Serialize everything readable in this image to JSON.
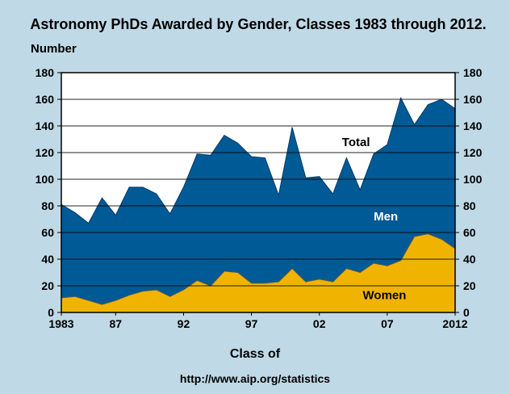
{
  "title": "Astronomy PhDs Awarded by Gender, Classes 1983 through 2012.",
  "ylabel": "Number",
  "xlabel": "Class of",
  "source": "http://www.aip.org/statistics",
  "colors": {
    "background": "#bfd9e6",
    "men": "#005a96",
    "women": "#f0b400",
    "plot_bg": "#ffffff"
  },
  "chart_data": {
    "type": "area",
    "title": "Astronomy PhDs Awarded by Gender, Classes 1983 through 2012.",
    "xlabel": "Class of",
    "ylabel": "Number",
    "x": [
      1983,
      1984,
      1985,
      1986,
      1987,
      1988,
      1989,
      1990,
      1991,
      1992,
      1993,
      1994,
      1995,
      1996,
      1997,
      1998,
      1999,
      2000,
      2001,
      2002,
      2003,
      2004,
      2005,
      2006,
      2007,
      2008,
      2009,
      2010,
      2011,
      2012
    ],
    "ylim": [
      0,
      180
    ],
    "xlim": [
      1983,
      2012
    ],
    "yticks": [
      0,
      20,
      40,
      60,
      80,
      100,
      120,
      140,
      160,
      180
    ],
    "xticks": [
      {
        "value": 1983,
        "label": "1983"
      },
      {
        "value": 1987,
        "label": "87"
      },
      {
        "value": 1992,
        "label": "92"
      },
      {
        "value": 1997,
        "label": "97"
      },
      {
        "value": 2002,
        "label": "02"
      },
      {
        "value": 2007,
        "label": "07"
      },
      {
        "value": 2012,
        "label": "2012"
      }
    ],
    "grid": true,
    "series": [
      {
        "name": "Total",
        "values": [
          81,
          75,
          67,
          86,
          73,
          94,
          94,
          89,
          74,
          94,
          119,
          118,
          133,
          127,
          117,
          116,
          88,
          139,
          101,
          102,
          89,
          116,
          92,
          119,
          126,
          161,
          141,
          156,
          160,
          153
        ]
      },
      {
        "name": "Women",
        "values": [
          11,
          12,
          9,
          6,
          9,
          13,
          16,
          17,
          12,
          17,
          24,
          20,
          31,
          30,
          22,
          22,
          23,
          33,
          23,
          25,
          23,
          33,
          30,
          37,
          35,
          39,
          57,
          59,
          55,
          48
        ]
      }
    ],
    "annotations": [
      {
        "text": "Total",
        "x": 2004.7,
        "y": 125,
        "color": "#000000"
      },
      {
        "text": "Men",
        "x": 2006.9,
        "y": 69,
        "color": "#ffffff"
      },
      {
        "text": "Women",
        "x": 2006.8,
        "y": 10,
        "color": "#000000"
      }
    ]
  }
}
